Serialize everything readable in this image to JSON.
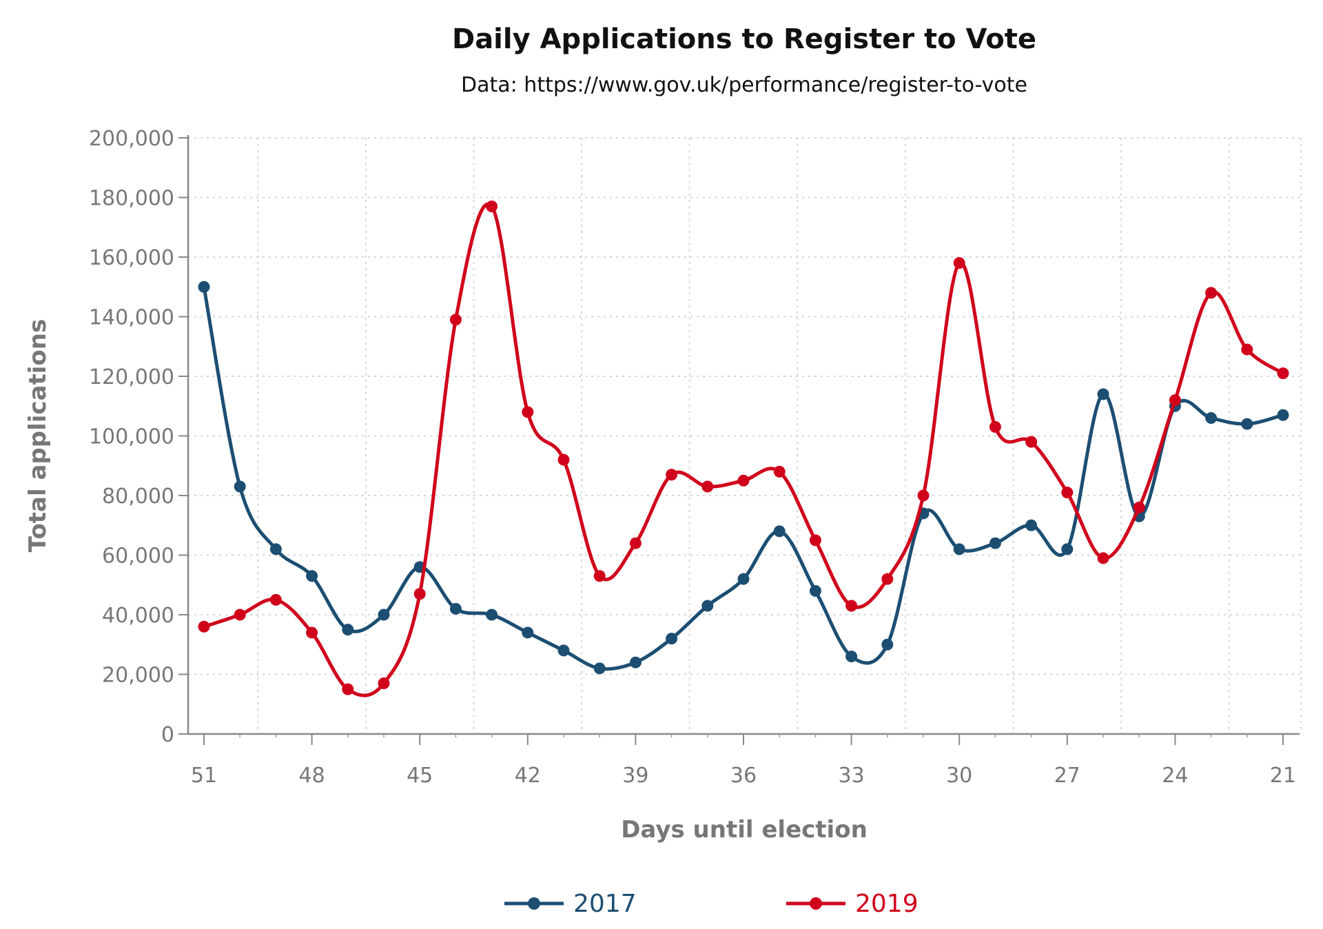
{
  "chart_data": {
    "type": "line",
    "title": "Daily Applications to Register to Vote",
    "subtitle": "Data: https://www.gov.uk/performance/register-to-vote",
    "xlabel": "Days until election",
    "ylabel": "Total applications",
    "x": [
      51,
      50,
      49,
      48,
      47,
      46,
      45,
      44,
      43,
      42,
      41,
      40,
      39,
      38,
      37,
      36,
      35,
      34,
      33,
      32,
      31,
      30,
      29,
      28,
      27,
      26,
      25,
      24,
      23,
      22,
      21
    ],
    "x_reversed": true,
    "xticks": [
      51,
      48,
      45,
      42,
      39,
      36,
      33,
      30,
      27,
      24,
      21
    ],
    "xtick_labels": [
      "51",
      "48",
      "45",
      "42",
      "39",
      "36",
      "33",
      "30",
      "27",
      "24",
      "21"
    ],
    "ylim": [
      0,
      200000
    ],
    "yticks": [
      0,
      20000,
      40000,
      60000,
      80000,
      100000,
      120000,
      140000,
      160000,
      180000,
      200000
    ],
    "ytick_labels": [
      "0",
      "20,000",
      "40,000",
      "60,000",
      "80,000",
      "100,000",
      "120,000",
      "140,000",
      "160,000",
      "180,000",
      "200,000"
    ],
    "grid": true,
    "legend_position": "bottom",
    "series": [
      {
        "name": "2017",
        "color": "#1c4e72",
        "values": [
          150000,
          83000,
          62000,
          53000,
          35000,
          40000,
          56000,
          42000,
          40000,
          34000,
          28000,
          22000,
          24000,
          32000,
          43000,
          52000,
          68000,
          48000,
          26000,
          30000,
          74000,
          62000,
          64000,
          70000,
          62000,
          114000,
          73000,
          110000,
          106000,
          104000,
          107000
        ]
      },
      {
        "name": "2019",
        "color": "#d0021b",
        "values": [
          36000,
          40000,
          45000,
          34000,
          15000,
          17000,
          47000,
          139000,
          177000,
          108000,
          92000,
          53000,
          64000,
          87000,
          83000,
          85000,
          88000,
          65000,
          43000,
          52000,
          80000,
          158000,
          103000,
          98000,
          81000,
          59000,
          76000,
          112000,
          148000,
          129000,
          121000
        ]
      }
    ]
  }
}
